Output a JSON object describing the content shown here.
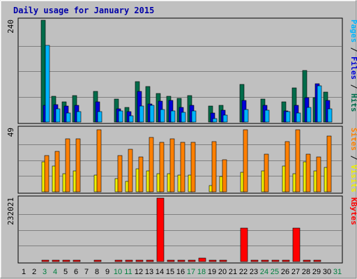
{
  "chart_data": {
    "title": "Daily usage for January 2015",
    "type": "bar",
    "days": [
      "1",
      "2",
      "3",
      "4",
      "5",
      "6",
      "7",
      "8",
      "9",
      "10",
      "11",
      "12",
      "13",
      "14",
      "15",
      "16",
      "17",
      "18",
      "19",
      "20",
      "21",
      "22",
      "23",
      "24",
      "25",
      "26",
      "27",
      "28",
      "29",
      "30",
      "31"
    ],
    "weekend_days": [
      "3",
      "4",
      "10",
      "11",
      "17",
      "18",
      "24",
      "25",
      "31"
    ],
    "colors": {
      "hits": "#006c4a",
      "files": "#0000d8",
      "pages": "#00b4ff",
      "visits": "#f0f000",
      "sites": "#ff8000",
      "kbytes": "#ff0000",
      "weekend_day": "#008040",
      "weekday": "#000000",
      "panel_bg": "#c0c0c0",
      "title": "#0000a8",
      "slash": "#000000"
    },
    "panels": [
      {
        "name": "hits-files-pages",
        "max_label": "240",
        "ylim": [
          0,
          240
        ],
        "right_labels": [
          {
            "text": "Pages",
            "color": "#00b4ff"
          },
          {
            "text": " / ",
            "color": "#000000"
          },
          {
            "text": "Files",
            "color": "#0000d8"
          },
          {
            "text": " / ",
            "color": "#000000"
          },
          {
            "text": "Hits",
            "color": "#006c4a"
          }
        ],
        "series": [
          {
            "key": "hits",
            "values": [
              0,
              0,
              240,
              60,
              48,
              62,
              0,
              72,
              0,
              54,
              34,
              95,
              84,
              68,
              60,
              56,
              62,
              0,
              38,
              40,
              0,
              88,
              0,
              55,
              0,
              48,
              80,
              122,
              58,
              70,
              0
            ]
          },
          {
            "key": "files",
            "values": [
              0,
              0,
              40,
              41,
              37,
              39,
              0,
              47,
              0,
              32,
              24,
              72,
              42,
              49,
              51,
              34,
              40,
              0,
              21,
              28,
              0,
              51,
              0,
              40,
              0,
              27,
              40,
              58,
              90,
              51,
              0
            ]
          },
          {
            "key": "pages",
            "values": [
              0,
              0,
              180,
              31,
              22,
              25,
              0,
              24,
              0,
              26,
              15,
              37,
              39,
              30,
              27,
              23,
              26,
              0,
              9,
              17,
              0,
              29,
              0,
              28,
              0,
              25,
              21,
              34,
              86,
              31,
              0
            ]
          }
        ]
      },
      {
        "name": "visits-sites",
        "max_label": "49",
        "ylim": [
          0,
          49
        ],
        "right_labels": [
          {
            "text": "Sites",
            "color": "#ff8000"
          },
          {
            "text": " / ",
            "color": "#000000"
          },
          {
            "text": "Visits",
            "color": "#f0f000"
          }
        ],
        "series": [
          {
            "key": "visits",
            "values": [
              0,
              0,
              23,
              20,
              14,
              16,
              0,
              13,
              0,
              10,
              8,
              18,
              16,
              14,
              14,
              13,
              13,
              0,
              5,
              12,
              0,
              15,
              0,
              16,
              0,
              20,
              14,
              23,
              16,
              19,
              0
            ]
          },
          {
            "key": "sites",
            "values": [
              0,
              0,
              28,
              31,
              41,
              41,
              0,
              48,
              0,
              28,
              33,
              27,
              42,
              38,
              41,
              38,
              38,
              0,
              39,
              25,
              0,
              48,
              0,
              29,
              0,
              39,
              48,
              29,
              27,
              43,
              0
            ]
          }
        ]
      },
      {
        "name": "kbytes",
        "max_label": "232021",
        "ylim": [
          0,
          232021
        ],
        "right_labels": [
          {
            "text": "KBytes",
            "color": "#ff0000"
          }
        ],
        "series": [
          {
            "key": "kbytes",
            "values": [
              0,
              0,
              2700,
              4000,
              5000,
              5000,
              0,
              5800,
              0,
              3600,
              3800,
              4700,
              4500,
              232021,
              3400,
              2900,
              3200,
              13000,
              4900,
              2900,
              0,
              123000,
              5000,
              4000,
              3600,
              4800,
              123000,
              2900,
              5500,
              0,
              0
            ]
          }
        ]
      }
    ]
  }
}
